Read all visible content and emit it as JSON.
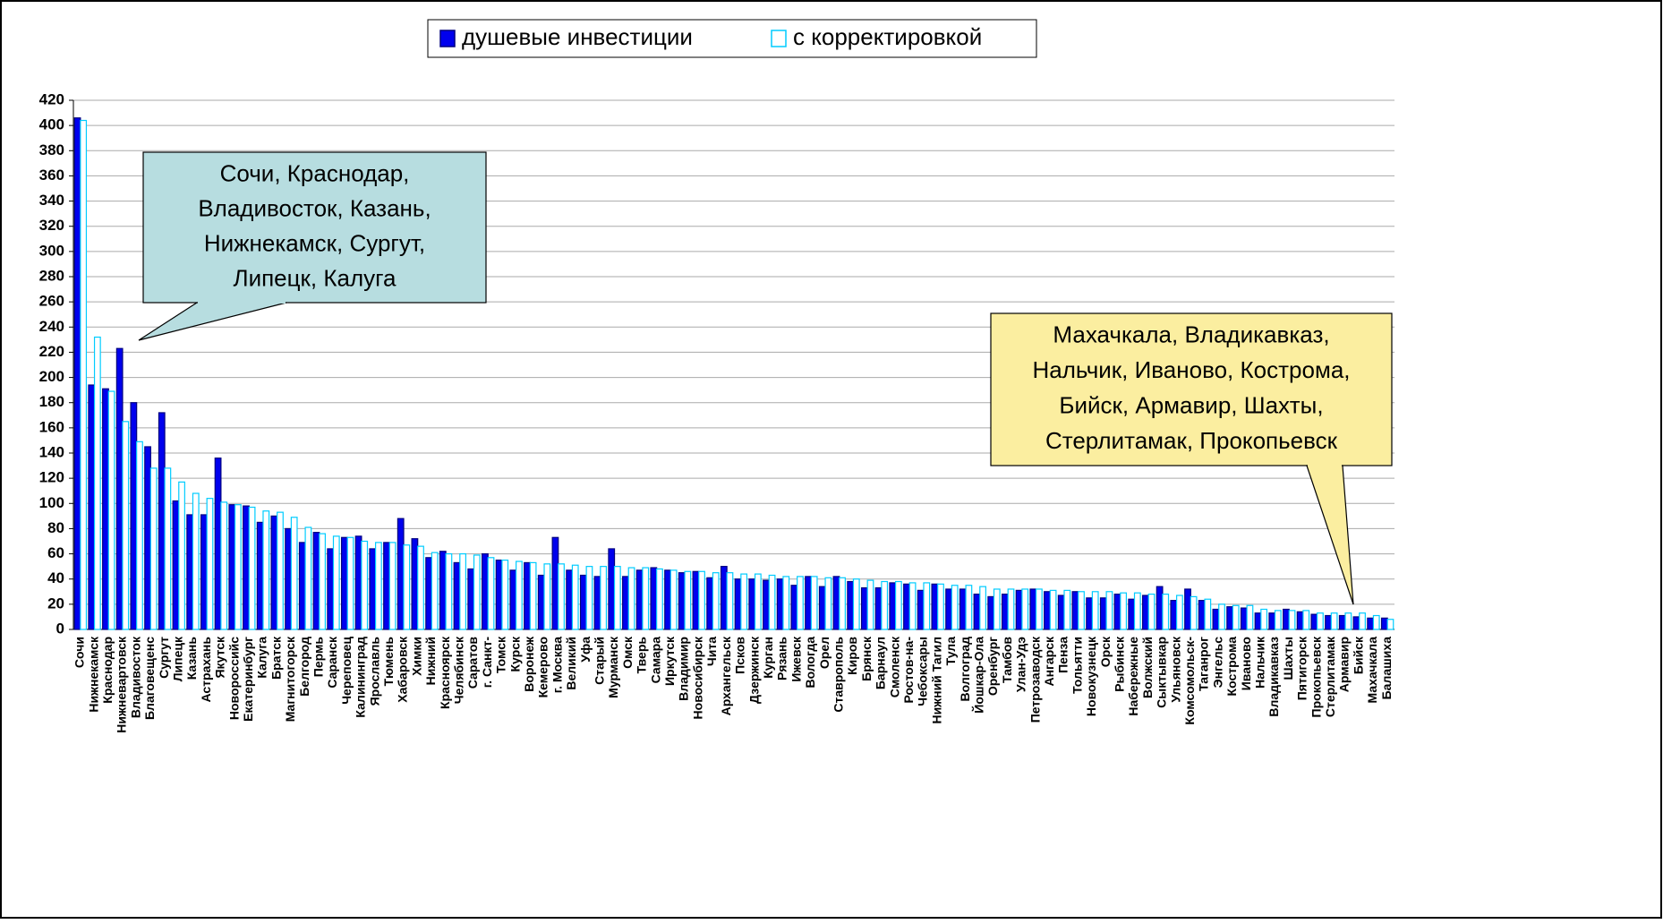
{
  "chart_data": {
    "type": "bar",
    "categories": [
      "Сочи",
      "Нижнекамск",
      "Краснодар",
      "Нижневартовск",
      "Владивосток",
      "Благовещенс",
      "Сургут",
      "Липецк",
      "Казань",
      "Астрахань",
      "Якутск",
      "Новороссийс",
      "Екатеринбург",
      "Калуга",
      "Братск",
      "Магнитогорск",
      "Белгород",
      "Пермь",
      "Саранск",
      "Череповец",
      "Калининград",
      "Ярославль",
      "Тюмень",
      "Хабаровск",
      "Химки",
      "Нижний",
      "Красноярск",
      "Челябинск",
      "Саратов",
      "г. Санкт-",
      "Томск",
      "Курск",
      "Воронеж",
      "Кемерово",
      "г. Москва",
      "Великий",
      "Уфа",
      "Старый",
      "Мурманск",
      "Омск",
      "Тверь",
      "Самара",
      "Иркутск",
      "Владимир",
      "Новосибирск",
      "Чита",
      "Архангельск",
      "Псков",
      "Дзержинск",
      "Курган",
      "Рязань",
      "Ижевск",
      "Вологда",
      "Орел",
      "Ставрополь",
      "Киров",
      "Брянск",
      "Барнаул",
      "Смоленск",
      "Ростов-на-",
      "Чебоксары",
      "Нижний Тагил",
      "Тула",
      "Волгоград",
      "Йошкар-Ола",
      "Оренбург",
      "Тамбов",
      "Улан-Удэ",
      "Петрозаводск",
      "Ангарск",
      "Пенза",
      "Тольятти",
      "Новокузнецк",
      "Орск",
      "Рыбинск",
      "Набережные",
      "Волжский",
      "Сыктывкар",
      "Ульяновск",
      "Комсомольск-",
      "Таганрог",
      "Энгельс",
      "Кострома",
      "Иваново",
      "Нальчик",
      "Владикавказ",
      "Шахты",
      "Пятигорск",
      "Прокопьевск",
      "Стерлитамак",
      "Армавир",
      "Бийск",
      "Махачкала",
      "Балашиха"
    ],
    "series": [
      {
        "name": "душевые инвестиции",
        "color": "#0000ee",
        "values": [
          406,
          194,
          191,
          223,
          180,
          145,
          172,
          102,
          91,
          91,
          136,
          99,
          98,
          85,
          90,
          80,
          69,
          77,
          64,
          73,
          74,
          64,
          69,
          88,
          72,
          57,
          62,
          53,
          48,
          60,
          55,
          47,
          53,
          43,
          73,
          47,
          43,
          42,
          64,
          42,
          47,
          49,
          47,
          45,
          46,
          41,
          50,
          40,
          40,
          39,
          40,
          35,
          42,
          34,
          42,
          38,
          33,
          33,
          37,
          36,
          31,
          36,
          32,
          32,
          28,
          26,
          28,
          31,
          32,
          30,
          27,
          30,
          25,
          25,
          28,
          24,
          27,
          34,
          23,
          32,
          23,
          16,
          18,
          17,
          13,
          13,
          16,
          14,
          12,
          11,
          11,
          10,
          9,
          9
        ]
      },
      {
        "name": "с корректировкой",
        "color": "#00ccff",
        "values": [
          404,
          232,
          189,
          165,
          149,
          128,
          128,
          117,
          108,
          104,
          101,
          99,
          97,
          94,
          93,
          89,
          81,
          76,
          74,
          73,
          70,
          69,
          69,
          67,
          66,
          61,
          60,
          60,
          59,
          57,
          55,
          54,
          53,
          52,
          52,
          51,
          50,
          50,
          50,
          49,
          49,
          48,
          47,
          46,
          46,
          45,
          45,
          44,
          44,
          43,
          42,
          42,
          42,
          41,
          41,
          40,
          39,
          38,
          38,
          37,
          37,
          36,
          35,
          35,
          34,
          32,
          32,
          32,
          32,
          31,
          31,
          30,
          30,
          30,
          29,
          29,
          28,
          28,
          27,
          26,
          24,
          20,
          19,
          19,
          16,
          15,
          15,
          15,
          13,
          13,
          13,
          13,
          11,
          8
        ]
      }
    ],
    "ylim": [
      0,
      420
    ],
    "yticks": [
      0,
      20,
      40,
      60,
      80,
      100,
      120,
      140,
      160,
      180,
      200,
      220,
      240,
      260,
      280,
      300,
      320,
      340,
      360,
      380,
      400,
      420
    ],
    "grid": true,
    "legend": "top",
    "annotations": [
      {
        "lines": [
          "Сочи, Краснодар,",
          "Владивосток, Казань,",
          "Нижнекамск, Сургут,",
          "Липецк, Калуга"
        ],
        "color": "#b7dde0"
      },
      {
        "lines": [
          "Махачкала, Владикавказ,",
          "Нальчик, Иваново, Кострома,",
          "Бийск, Армавир, Шахты,",
          "Стерлитамак, Прокопьевск"
        ],
        "color": "#fbeea0"
      }
    ]
  }
}
